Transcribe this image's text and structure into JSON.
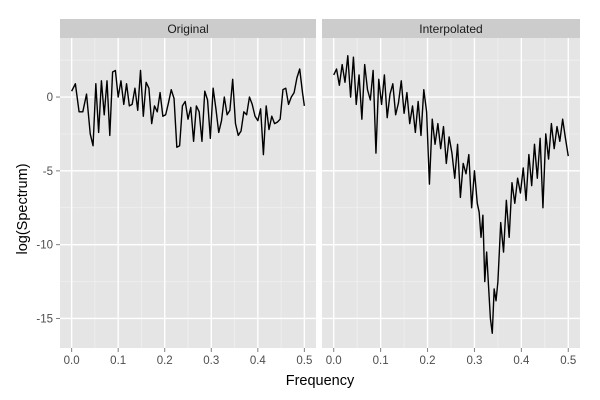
{
  "chart_data": {
    "type": "line",
    "xlabel": "Frequency",
    "ylabel": "log(Spectrum)",
    "xlim": [
      -0.025,
      0.525
    ],
    "ylim": [
      -17,
      4
    ],
    "x_ticks": [
      0.0,
      0.1,
      0.2,
      0.3,
      0.4,
      0.5
    ],
    "x_tick_labels": [
      "0.0",
      "0.1",
      "0.2",
      "0.3",
      "0.4",
      "0.5"
    ],
    "y_ticks": [
      0,
      -5,
      -10,
      -15
    ],
    "y_tick_labels": [
      "0",
      "-5",
      "-10",
      "-15"
    ],
    "grid": true,
    "panel_background": "#e5e5e5",
    "strip_background": "#cccccc",
    "line_color": "#000000",
    "panels": [
      {
        "label": "Original",
        "x": [
          0.0,
          0.008,
          0.016,
          0.024,
          0.032,
          0.04,
          0.046,
          0.052,
          0.058,
          0.064,
          0.07,
          0.076,
          0.082,
          0.088,
          0.094,
          0.1,
          0.106,
          0.112,
          0.118,
          0.124,
          0.13,
          0.136,
          0.142,
          0.148,
          0.154,
          0.16,
          0.166,
          0.172,
          0.178,
          0.184,
          0.19,
          0.196,
          0.202,
          0.208,
          0.214,
          0.22,
          0.226,
          0.232,
          0.238,
          0.244,
          0.25,
          0.256,
          0.262,
          0.268,
          0.274,
          0.28,
          0.286,
          0.292,
          0.298,
          0.304,
          0.31,
          0.316,
          0.322,
          0.328,
          0.334,
          0.34,
          0.346,
          0.352,
          0.358,
          0.364,
          0.37,
          0.376,
          0.382,
          0.388,
          0.394,
          0.4,
          0.406,
          0.412,
          0.418,
          0.424,
          0.43,
          0.436,
          0.442,
          0.448,
          0.454,
          0.46,
          0.466,
          0.472,
          0.478,
          0.484,
          0.49,
          0.496,
          0.5
        ],
        "y": [
          0.4,
          0.9,
          -1.0,
          -1.0,
          0.2,
          -2.5,
          -3.3,
          0.9,
          -2.4,
          1.1,
          -1.2,
          1.1,
          -2.6,
          1.7,
          1.8,
          0.0,
          1.1,
          -0.5,
          0.9,
          -0.6,
          -0.5,
          0.6,
          -0.9,
          1.8,
          -1.3,
          1.0,
          0.6,
          -1.8,
          -0.6,
          -1.0,
          0.3,
          -1.3,
          -1.2,
          -0.4,
          0.5,
          -0.1,
          -3.4,
          -3.3,
          -0.6,
          -0.3,
          -1.5,
          -0.7,
          -3.0,
          -0.6,
          -1.0,
          -3.0,
          0.4,
          -0.2,
          -2.8,
          0.6,
          -0.8,
          -2.4,
          -1.6,
          0.0,
          -1.2,
          -0.9,
          1.2,
          -1.8,
          -2.6,
          -2.3,
          -1.0,
          -1.2,
          0.0,
          -0.5,
          -1.3,
          -1.6,
          -0.8,
          -3.9,
          -0.6,
          -2.2,
          -1.3,
          -1.8,
          -1.7,
          -1.5,
          0.5,
          0.6,
          -0.5,
          0.0,
          0.3,
          1.3,
          1.9,
          0.3,
          -0.6
        ]
      },
      {
        "label": "Interpolated",
        "x": [
          0.0,
          0.006,
          0.012,
          0.018,
          0.024,
          0.03,
          0.036,
          0.042,
          0.048,
          0.054,
          0.06,
          0.066,
          0.072,
          0.078,
          0.084,
          0.09,
          0.096,
          0.102,
          0.108,
          0.114,
          0.12,
          0.126,
          0.132,
          0.138,
          0.144,
          0.15,
          0.156,
          0.162,
          0.168,
          0.174,
          0.18,
          0.186,
          0.192,
          0.198,
          0.204,
          0.21,
          0.216,
          0.222,
          0.228,
          0.234,
          0.24,
          0.246,
          0.252,
          0.258,
          0.264,
          0.27,
          0.276,
          0.282,
          0.288,
          0.294,
          0.3,
          0.306,
          0.31,
          0.314,
          0.318,
          0.322,
          0.326,
          0.33,
          0.334,
          0.338,
          0.342,
          0.346,
          0.35,
          0.356,
          0.362,
          0.368,
          0.374,
          0.38,
          0.386,
          0.392,
          0.398,
          0.404,
          0.41,
          0.416,
          0.422,
          0.428,
          0.434,
          0.44,
          0.446,
          0.452,
          0.458,
          0.464,
          0.47,
          0.476,
          0.482,
          0.488,
          0.494,
          0.5
        ],
        "y": [
          1.5,
          1.9,
          0.8,
          2.2,
          1.0,
          2.8,
          0.0,
          2.7,
          -0.5,
          1.5,
          -1.5,
          2.2,
          0.5,
          -0.2,
          1.8,
          -3.8,
          1.2,
          -0.5,
          1.5,
          -1.4,
          0.2,
          0.9,
          -1.2,
          -0.4,
          1.1,
          -1.1,
          0.3,
          -1.8,
          -0.6,
          -2.4,
          -0.3,
          -2.6,
          0.5,
          -1.0,
          -5.9,
          -1.5,
          -3.2,
          -1.8,
          -3.5,
          -2.0,
          -4.5,
          -2.7,
          -3.8,
          -5.5,
          -3.2,
          -6.8,
          -4.5,
          -5.2,
          -3.9,
          -7.5,
          -5.0,
          -7.2,
          -7.8,
          -9.5,
          -8.0,
          -12.5,
          -10.5,
          -12.8,
          -15.0,
          -16.0,
          -13.0,
          -13.8,
          -12.5,
          -8.5,
          -10.5,
          -7.0,
          -9.5,
          -5.8,
          -7.2,
          -5.5,
          -6.5,
          -4.8,
          -7.0,
          -3.9,
          -6.0,
          -3.2,
          -5.5,
          -2.8,
          -7.5,
          -2.5,
          -4.2,
          -1.8,
          -3.5,
          -2.0,
          -3.0,
          -1.5,
          -2.8,
          -4.0
        ]
      }
    ]
  }
}
